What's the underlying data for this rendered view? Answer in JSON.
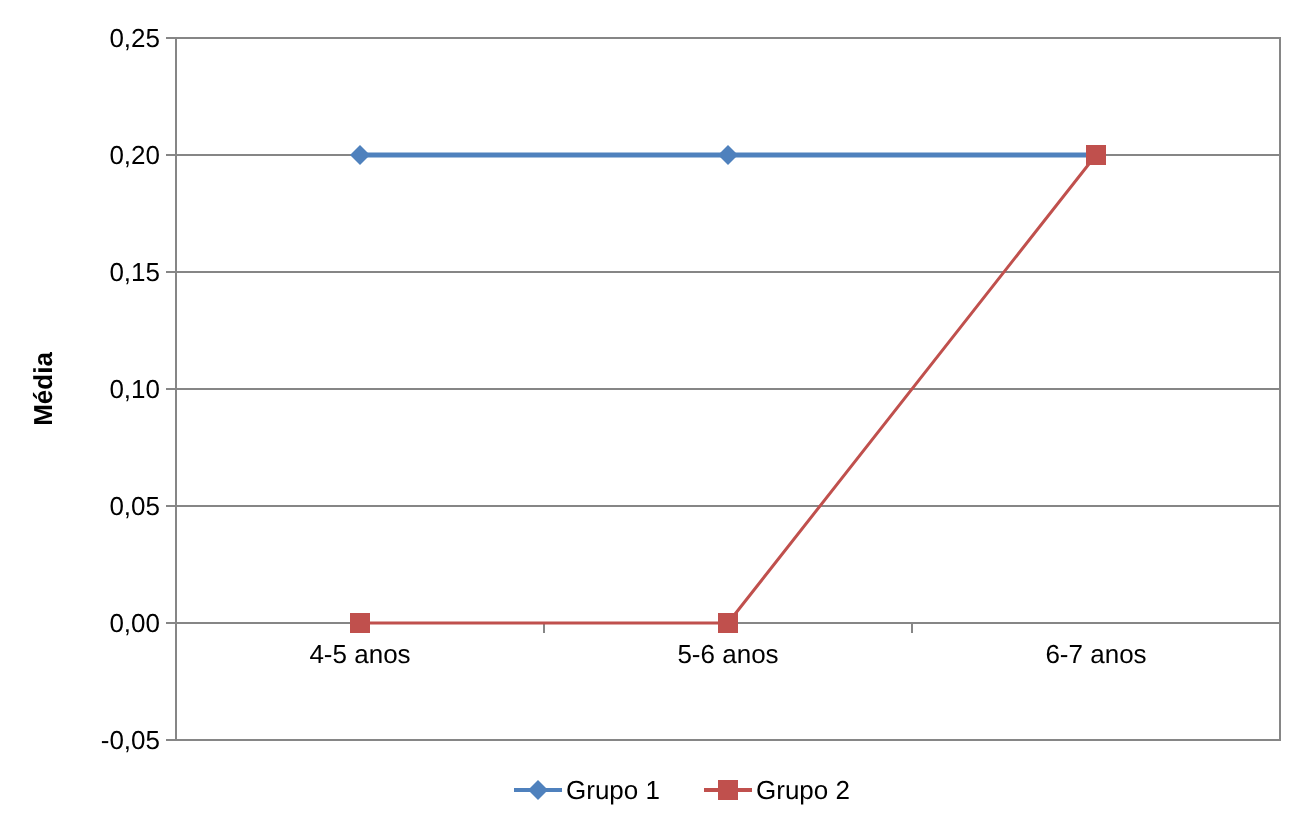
{
  "chart_data": {
    "type": "line",
    "ylabel": "Média",
    "categories": [
      "4-5 anos",
      "5-6 anos",
      "6-7 anos"
    ],
    "series": [
      {
        "name": "Grupo 1",
        "color": "#4f81bd",
        "marker": "diamond",
        "values": [
          0.2,
          0.2,
          0.2
        ]
      },
      {
        "name": "Grupo 2",
        "color": "#c0504d",
        "marker": "square",
        "values": [
          0,
          0,
          0.2
        ]
      }
    ],
    "ylim": [
      -0.05,
      0.25
    ],
    "yticks": [
      {
        "value": -0.05,
        "label": "-0,05"
      },
      {
        "value": 0,
        "label": "0,00"
      },
      {
        "value": 0.05,
        "label": "0,05"
      },
      {
        "value": 0.1,
        "label": "0,10"
      },
      {
        "value": 0.15,
        "label": "0,15"
      },
      {
        "value": 0.2,
        "label": "0,20"
      },
      {
        "value": 0.25,
        "label": "0,25"
      }
    ],
    "grid": "y",
    "legend": "bottom",
    "line_style": "solid"
  }
}
